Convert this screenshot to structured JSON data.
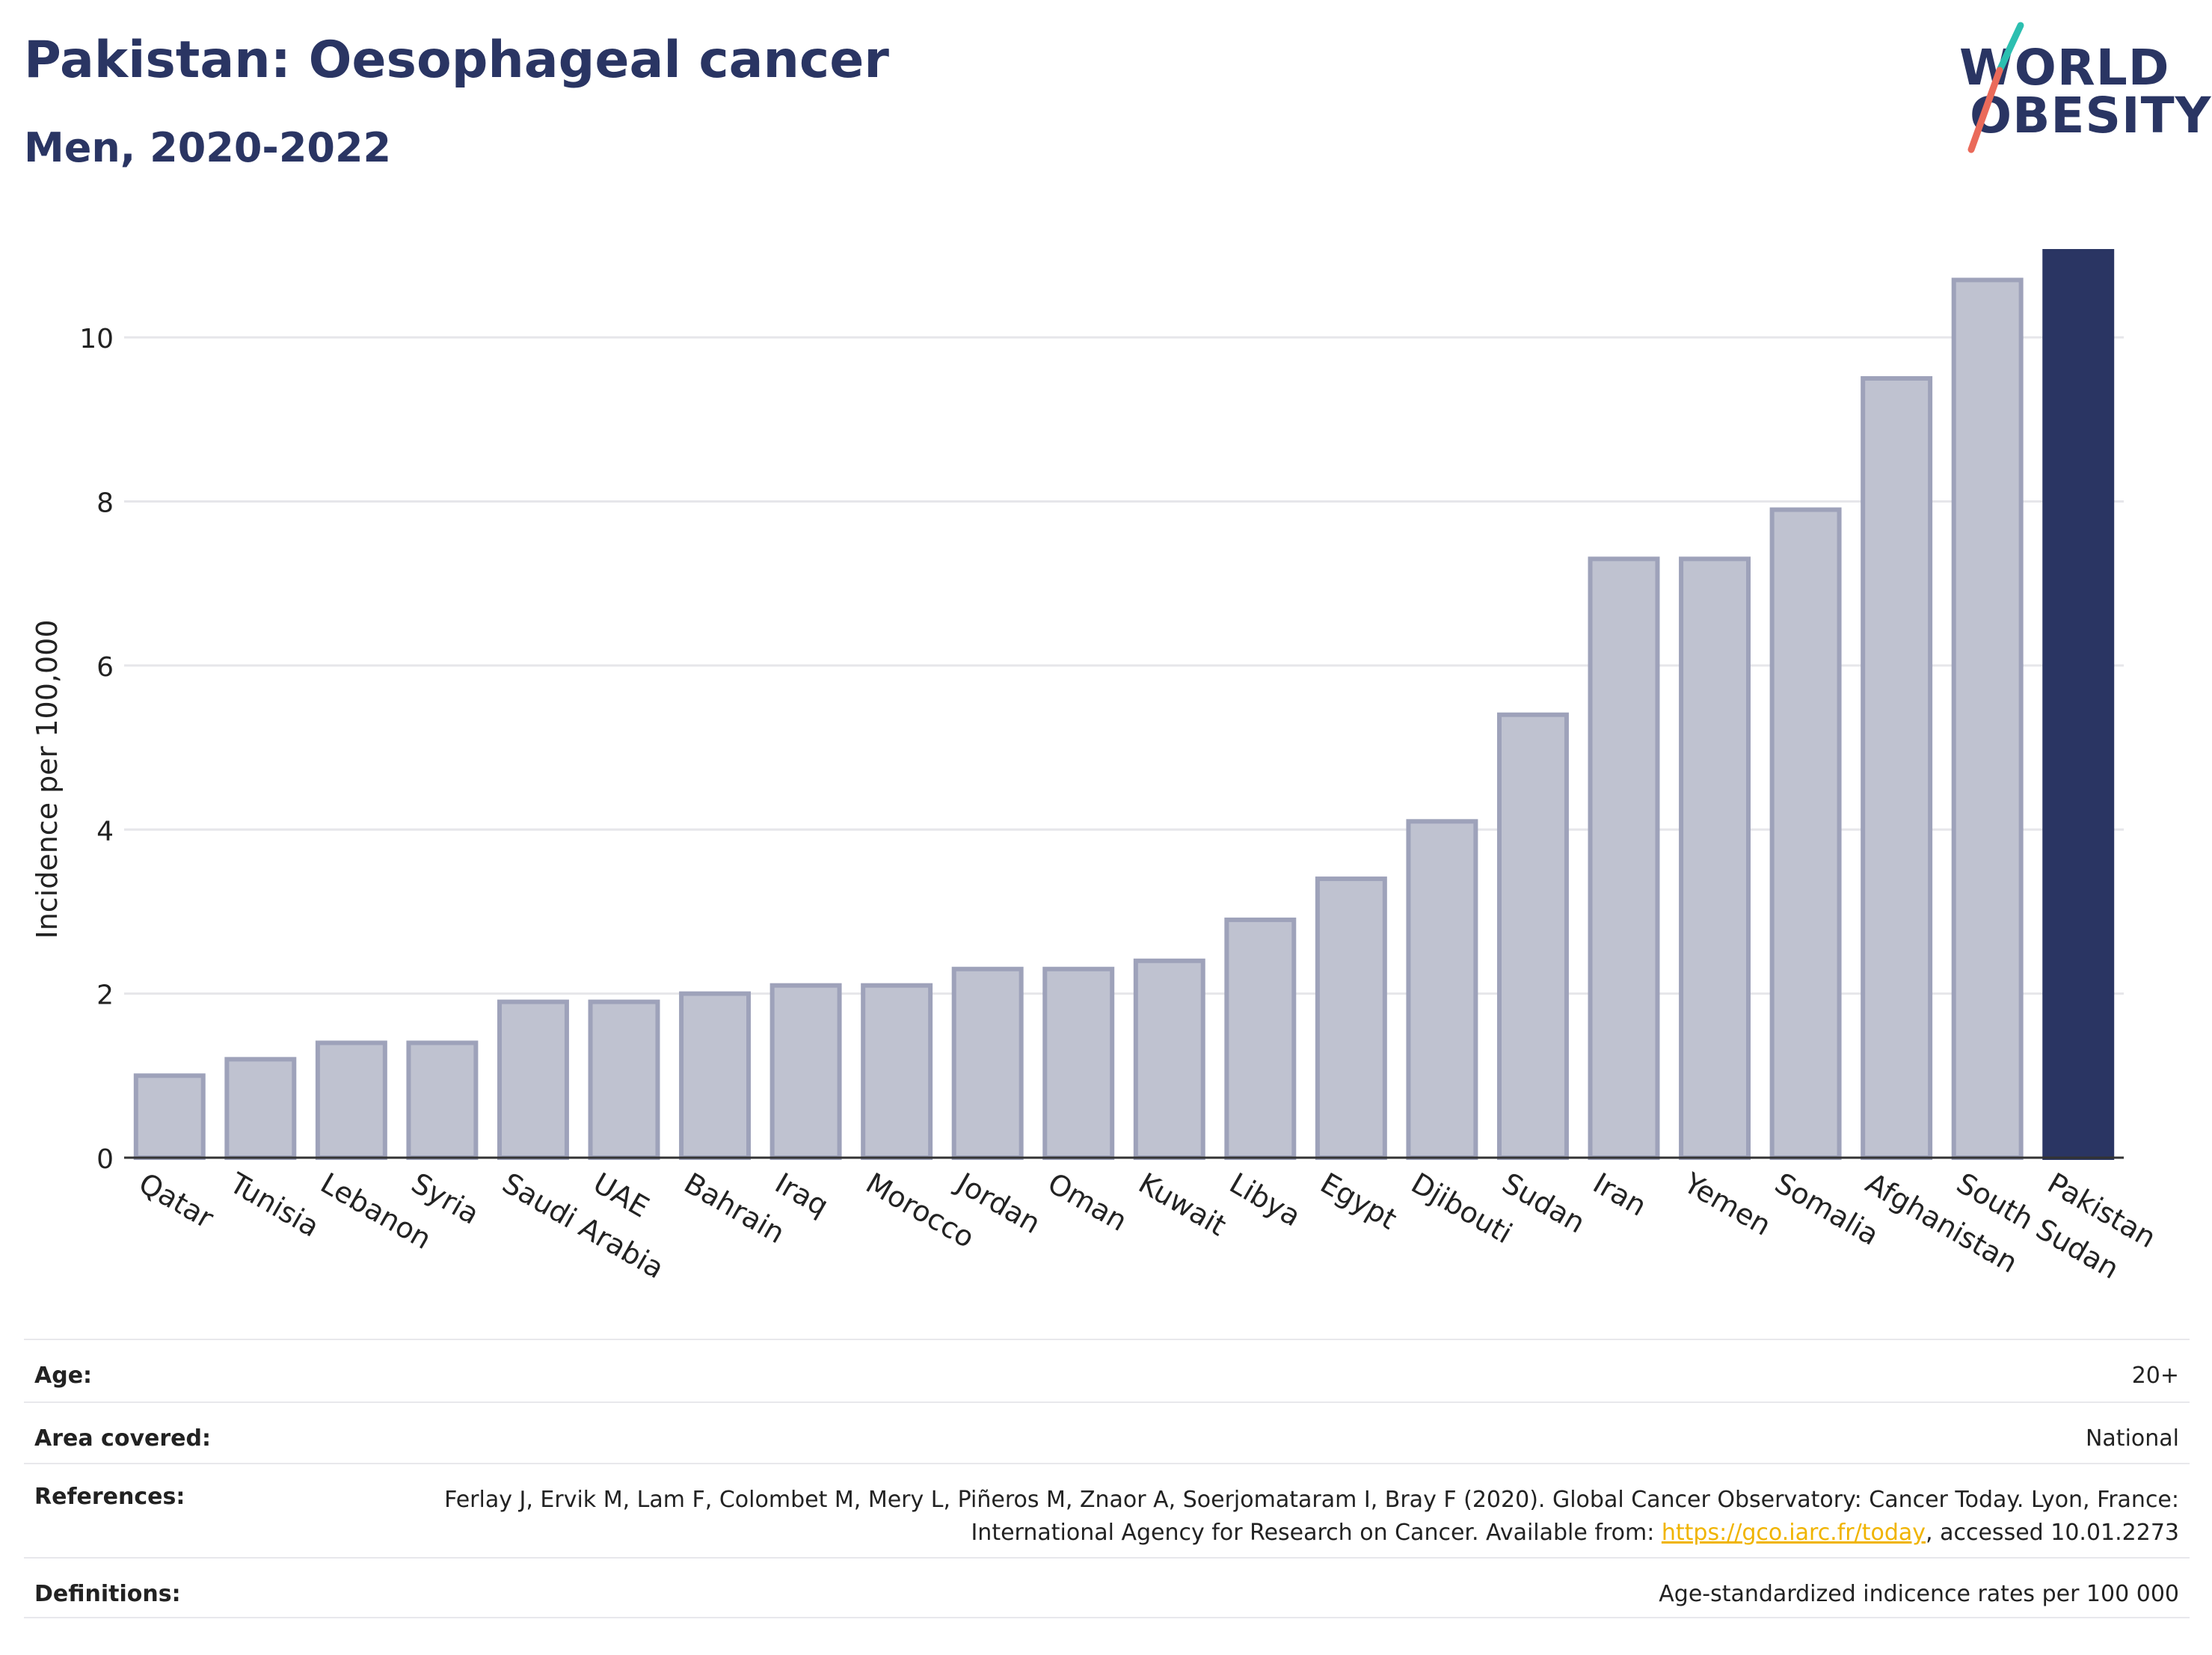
{
  "header": {
    "title": "Pakistan: Oesophageal cancer",
    "subtitle": "Men, 2020-2022"
  },
  "logo": {
    "line1": "WORLD",
    "line2": "OBESITY"
  },
  "colors": {
    "highlight_bar": "#2a3563",
    "other_bar_fill": "#bfc2d0",
    "other_bar_stroke": "#9ea2ba",
    "title": "#2a3563",
    "link": "#f0b400",
    "logo_teal": "#2cbfb0",
    "logo_coral": "#ea6a5a"
  },
  "chart_data": {
    "type": "bar",
    "categories": [
      "Qatar",
      "Tunisia",
      "Lebanon",
      "Syria",
      "Saudi Arabia",
      "UAE",
      "Bahrain",
      "Iraq",
      "Morocco",
      "Jordan",
      "Oman",
      "Kuwait",
      "Libya",
      "Egypt",
      "Djibouti",
      "Sudan",
      "Iran",
      "Yemen",
      "Somalia",
      "Afghanistan",
      "South Sudan",
      "Pakistan"
    ],
    "values": [
      1.0,
      1.2,
      1.4,
      1.4,
      1.9,
      1.9,
      2.0,
      2.1,
      2.1,
      2.3,
      2.3,
      2.4,
      2.9,
      3.4,
      4.1,
      5.4,
      7.3,
      7.3,
      7.9,
      9.5,
      10.7,
      11.05
    ],
    "highlight": "Pakistan",
    "ylabel": "Incidence per 100,000",
    "ylim": [
      0,
      11.05
    ],
    "yticks": [
      0,
      2,
      4,
      6,
      8,
      10
    ],
    "grid": true
  },
  "info": {
    "age_label": "Age:",
    "age_value": "20+",
    "area_label": "Area covered:",
    "area_value": "National",
    "references_label": "References:",
    "references_text_1": "Ferlay J, Ervik M, Lam F, Colombet M, Mery L, Piñeros M, Znaor A, Soerjomataram I, Bray F (2020). Global Cancer Observatory: Cancer Today. Lyon, France: International Agency for Research on Cancer. Available from: ",
    "references_link": "https://gco.iarc.fr/today",
    "references_text_2": ", accessed 10.01.2273",
    "definitions_label": "Definitions:",
    "definitions_value": "Age-standardized indicence rates per 100 000"
  }
}
